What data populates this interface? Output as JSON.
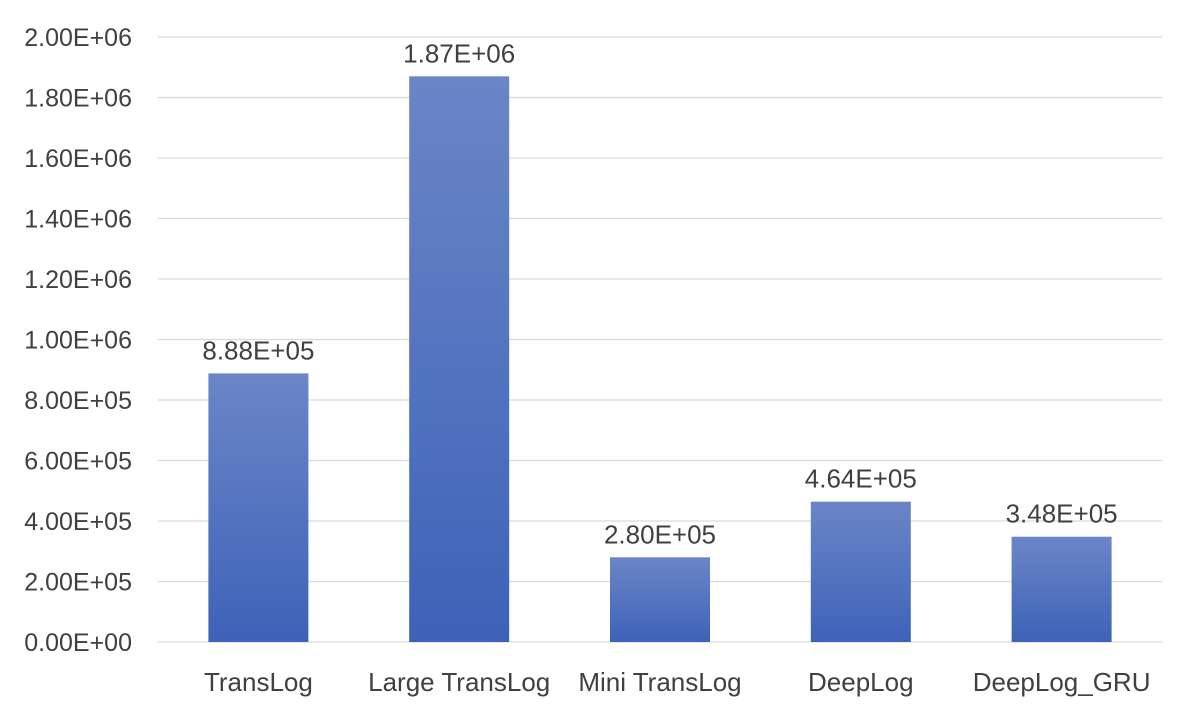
{
  "chart_data": {
    "type": "bar",
    "categories": [
      "TransLog",
      "Large TransLog",
      "Mini TransLog",
      "DeepLog",
      "DeepLog_GRU"
    ],
    "values": [
      888000,
      1870000,
      280000,
      464000,
      348000
    ],
    "data_labels": [
      "8.88E+05",
      "1.87E+06",
      "2.80E+05",
      "4.64E+05",
      "3.48E+05"
    ],
    "y_ticks": [
      0,
      200000,
      400000,
      600000,
      800000,
      1000000,
      1200000,
      1400000,
      1600000,
      1800000,
      2000000
    ],
    "y_tick_labels": [
      "0.00E+00",
      "2.00E+05",
      "4.00E+05",
      "6.00E+05",
      "8.00E+05",
      "1.00E+06",
      "1.20E+06",
      "1.40E+06",
      "1.60E+06",
      "1.80E+06",
      "2.00E+06"
    ],
    "ylim": [
      0,
      2000000
    ],
    "grid": true,
    "legend": "none",
    "colors": {
      "bar_top": "#6b86c7",
      "bar_bottom": "#3d62b7",
      "grid": "#d9d9d9",
      "text": "#404040"
    }
  }
}
